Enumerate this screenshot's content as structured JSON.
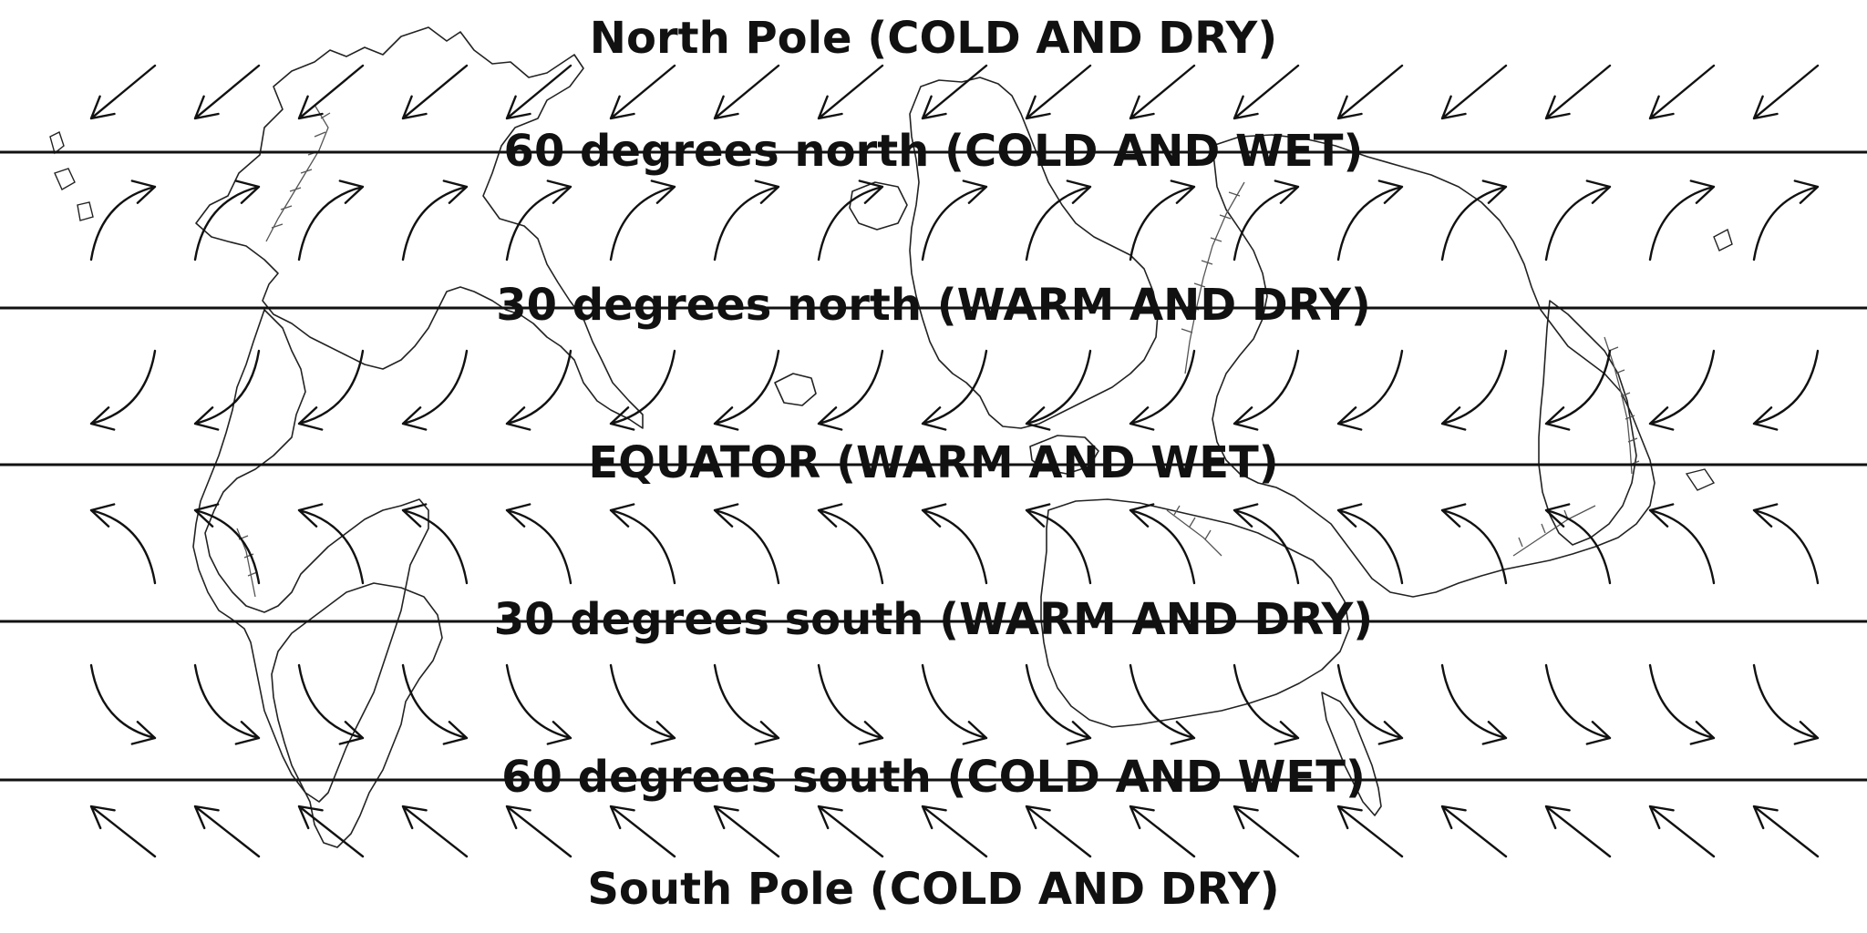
{
  "map": {
    "labels": {
      "north_pole": "North Pole (COLD AND DRY)",
      "sixty_north": "60 degrees north (COLD AND WET)",
      "thirty_north": "30 degrees north  (WARM AND DRY)",
      "equator": "EQUATOR  (WARM AND WET)",
      "thirty_south": "30 degrees south (WARM AND DRY)",
      "sixty_south": "60 degrees south (COLD AND WET)",
      "south_pole": "South Pole (COLD AND DRY)"
    },
    "wind_bands": [
      {
        "band": "polar-north",
        "direction": "down-left"
      },
      {
        "band": "midlatitude-north",
        "direction": "up-right"
      },
      {
        "band": "tropical-north",
        "direction": "down-left"
      },
      {
        "band": "tropical-south",
        "direction": "up-left"
      },
      {
        "band": "midlatitude-south",
        "direction": "down-right"
      },
      {
        "band": "polar-south",
        "direction": "up-left"
      }
    ],
    "colors": {
      "ink": "#111111",
      "background": "#ffffff"
    }
  }
}
